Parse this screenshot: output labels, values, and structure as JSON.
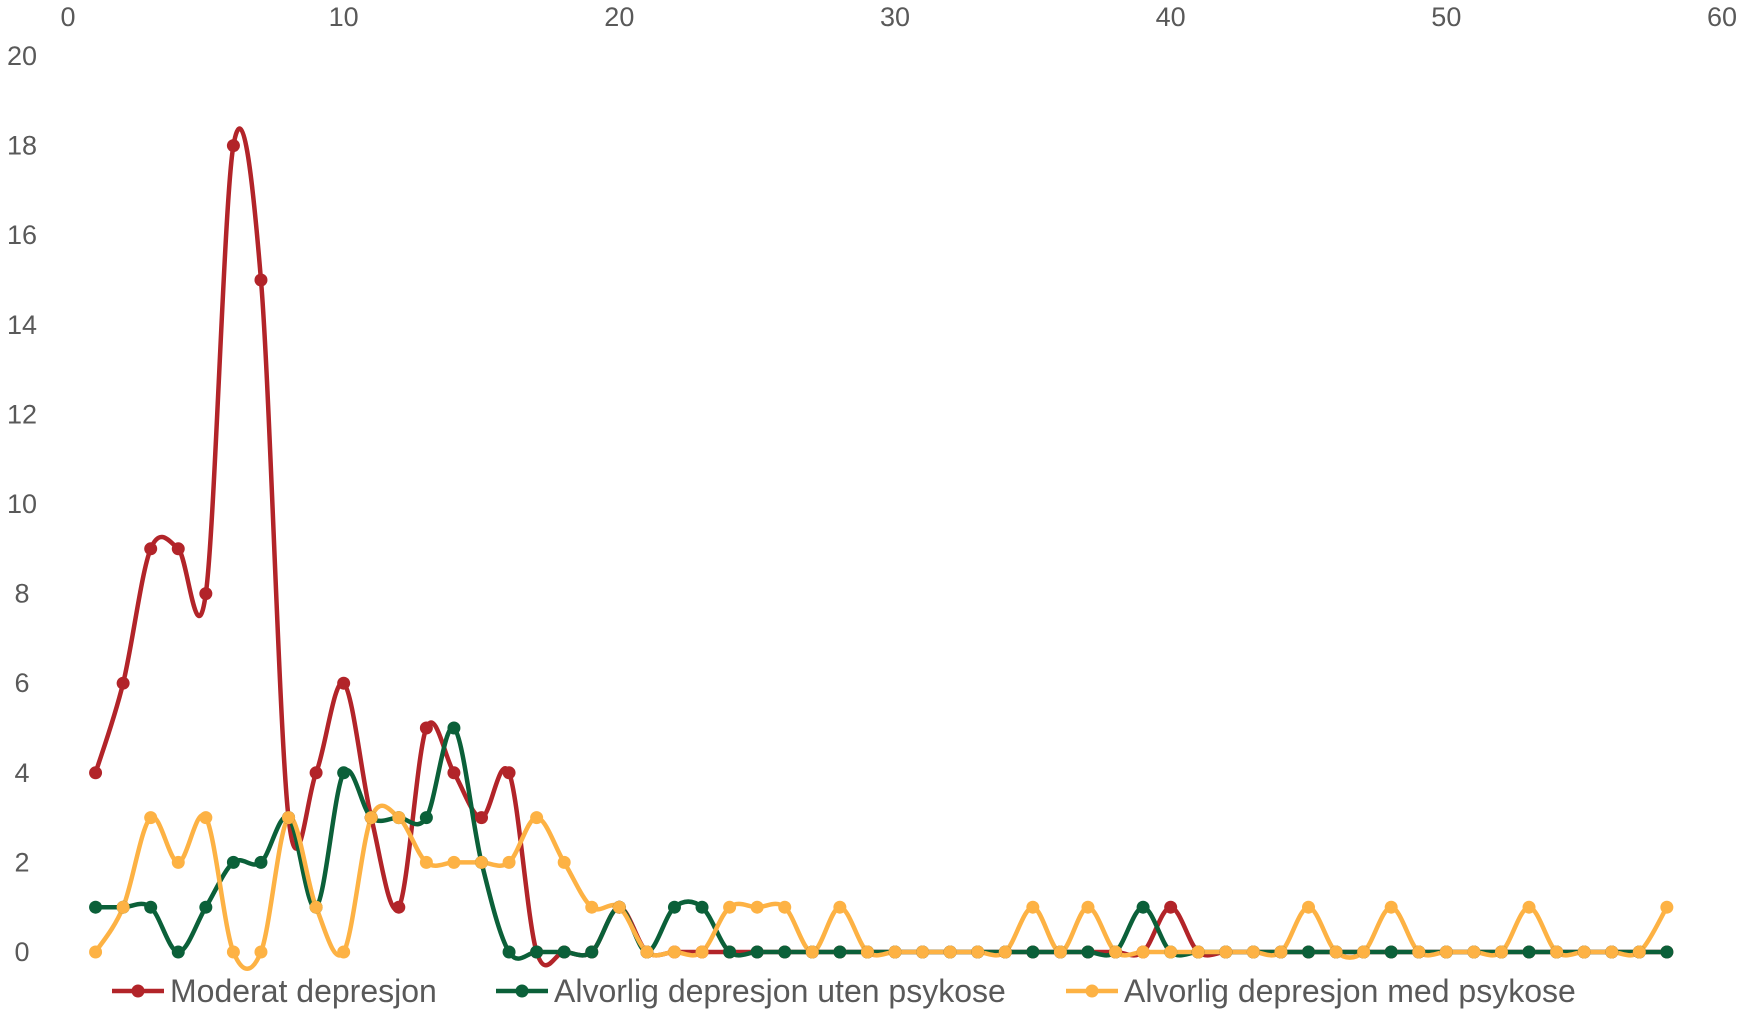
{
  "chart_data": {
    "type": "line",
    "smoothed": true,
    "markers": "circle",
    "xlim": [
      0,
      60
    ],
    "ylim": [
      0,
      20
    ],
    "x_ticks": [
      0,
      10,
      20,
      30,
      40,
      50,
      60
    ],
    "y_ticks": [
      0,
      2,
      4,
      6,
      8,
      10,
      12,
      14,
      16,
      18,
      20
    ],
    "x_axis_position": "top",
    "grid": false,
    "legend_position": "bottom",
    "title": "",
    "xlabel": "",
    "ylabel": "",
    "series": [
      {
        "name": "Moderat depresjon",
        "color": "#b22429",
        "x": [
          1,
          2,
          3,
          4,
          5,
          6,
          7,
          8,
          9,
          10,
          11,
          12,
          13,
          14,
          15,
          16,
          17,
          18,
          19,
          20,
          21,
          22,
          23,
          24,
          25,
          26,
          27,
          28,
          29,
          30,
          31,
          32,
          33,
          34,
          35,
          36,
          37,
          38,
          39,
          40,
          41,
          42,
          43,
          44,
          45,
          46,
          47,
          48,
          49,
          50,
          51,
          52,
          53,
          54,
          55,
          56,
          57,
          58
        ],
        "y": [
          4,
          6,
          9,
          9,
          8,
          18,
          15,
          3,
          4,
          6,
          3,
          1,
          5,
          4,
          3,
          4,
          0,
          0,
          0,
          1,
          0,
          0,
          0,
          0,
          0,
          0,
          0,
          0,
          0,
          0,
          0,
          0,
          0,
          0,
          0,
          0,
          0,
          0,
          0,
          1,
          0,
          0,
          0,
          0,
          0,
          0,
          0,
          0,
          0,
          0,
          0,
          0,
          0,
          0,
          0,
          0,
          0,
          0
        ]
      },
      {
        "name": "Alvorlig depresjon uten psykose",
        "color": "#0b6039",
        "x": [
          1,
          2,
          3,
          4,
          5,
          6,
          7,
          8,
          9,
          10,
          11,
          12,
          13,
          14,
          15,
          16,
          17,
          18,
          19,
          20,
          21,
          22,
          23,
          24,
          25,
          26,
          27,
          28,
          29,
          30,
          31,
          32,
          33,
          34,
          35,
          36,
          37,
          38,
          39,
          40,
          41,
          42,
          43,
          44,
          45,
          46,
          47,
          48,
          49,
          50,
          51,
          52,
          53,
          54,
          55,
          56,
          57,
          58
        ],
        "y": [
          1,
          1,
          1,
          0,
          1,
          2,
          2,
          3,
          1,
          4,
          3,
          3,
          3,
          5,
          2,
          0,
          0,
          0,
          0,
          1,
          0,
          1,
          1,
          0,
          0,
          0,
          0,
          0,
          0,
          0,
          0,
          0,
          0,
          0,
          0,
          0,
          0,
          0,
          1,
          0,
          0,
          0,
          0,
          0,
          0,
          0,
          0,
          0,
          0,
          0,
          0,
          0,
          0,
          0,
          0,
          0,
          0,
          0
        ]
      },
      {
        "name": "Alvorlig depresjon med psykose",
        "color": "#fdb244",
        "x": [
          1,
          2,
          3,
          4,
          5,
          6,
          7,
          8,
          9,
          10,
          11,
          12,
          13,
          14,
          15,
          16,
          17,
          18,
          19,
          20,
          21,
          22,
          23,
          24,
          25,
          26,
          27,
          28,
          29,
          30,
          31,
          32,
          33,
          34,
          35,
          36,
          37,
          38,
          39,
          40,
          41,
          42,
          43,
          44,
          45,
          46,
          47,
          48,
          49,
          50,
          51,
          52,
          53,
          54,
          55,
          56,
          57,
          58
        ],
        "y": [
          0,
          1,
          3,
          2,
          3,
          0,
          0,
          3,
          1,
          0,
          3,
          3,
          2,
          2,
          2,
          2,
          3,
          2,
          1,
          1,
          0,
          0,
          0,
          1,
          1,
          1,
          0,
          1,
          0,
          0,
          0,
          0,
          0,
          0,
          1,
          0,
          1,
          0,
          0,
          0,
          0,
          0,
          0,
          0,
          1,
          0,
          0,
          1,
          0,
          0,
          0,
          0,
          1,
          0,
          0,
          0,
          0,
          1
        ]
      }
    ]
  }
}
